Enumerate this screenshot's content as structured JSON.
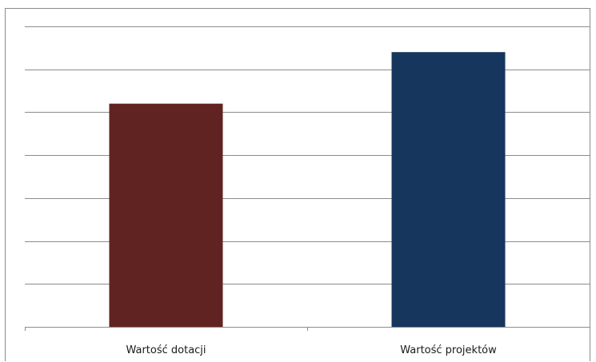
{
  "chart_data": {
    "type": "bar",
    "categories": [
      "Wartość dotacji",
      "Wartość projektów"
    ],
    "values": [
      5.2,
      6.4
    ],
    "ylim": [
      0,
      7
    ],
    "y_gridlines": [
      1,
      2,
      3,
      4,
      5,
      6,
      7
    ],
    "bar_colors": [
      "#612322",
      "#17365d"
    ],
    "grid": true,
    "legend": "none",
    "title": "",
    "xlabel": "",
    "ylabel": ""
  }
}
